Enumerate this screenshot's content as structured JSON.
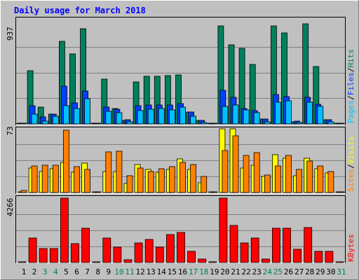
{
  "title": "Daily usage for March 2018",
  "colors": {
    "background": "#c0c0c0",
    "plot_bg": "#c0c0c0",
    "hits": "#00805c",
    "files": "#0040ff",
    "pages": "#00c0ff",
    "visits": "#ffff00",
    "sites": "#ff8000",
    "kbytes": "#ff0000",
    "title": "#0000ff",
    "weekend_label": "#00805c"
  },
  "legend": {
    "top": {
      "pages": "Pages",
      "sep1": "/",
      "files": "Files",
      "sep2": "/",
      "hits": "Hits"
    },
    "mid": {
      "sites": "Sites",
      "sep": "/",
      "visits": "Visits"
    },
    "bottom": {
      "kbytes": "KBytes"
    }
  },
  "chart_data": {
    "type": "bar",
    "title": "Daily usage for March 2018",
    "categories": [
      "1",
      "2",
      "3",
      "4",
      "5",
      "6",
      "7",
      "8",
      "9",
      "10",
      "11",
      "12",
      "13",
      "14",
      "15",
      "16",
      "17",
      "18",
      "19",
      "20",
      "21",
      "22",
      "23",
      "24",
      "25",
      "26",
      "27",
      "28",
      "29",
      "30",
      "31"
    ],
    "weekend_days": [
      "3",
      "4",
      "10",
      "11",
      "17",
      "18",
      "24",
      "25",
      "31"
    ],
    "panels": [
      {
        "id": "top",
        "ymax_label": "937",
        "ylim": [
          0,
          937
        ],
        "series": [
          {
            "name": "Hits",
            "color": "#00805c",
            "values": [
              0,
              485,
              150,
              90,
              755,
              640,
              870,
              0,
              405,
              140,
              30,
              385,
              435,
              435,
              440,
              445,
              110,
              30,
              0,
              890,
              720,
              690,
              540,
              45,
              890,
              830,
              20,
              910,
              520,
              40,
              0
            ]
          },
          {
            "name": "Files",
            "color": "#0040ff",
            "values": [
              0,
              165,
              65,
              90,
              345,
              190,
              300,
              0,
              155,
              135,
              40,
              165,
              170,
              170,
              175,
              185,
              110,
              30,
              0,
              305,
              245,
              140,
              120,
              45,
              265,
              250,
              25,
              245,
              180,
              40,
              0
            ]
          },
          {
            "name": "Pages",
            "color": "#00c0ff",
            "values": [
              0,
              90,
              25,
              70,
              165,
              140,
              230,
              0,
              115,
              100,
              20,
              120,
              135,
              140,
              125,
              155,
              70,
              15,
              0,
              160,
              170,
              125,
              100,
              20,
              200,
              210,
              15,
              195,
              160,
              20,
              0
            ]
          }
        ]
      },
      {
        "id": "mid",
        "ymax_label": "73",
        "ylim": [
          0,
          73
        ],
        "series": [
          {
            "name": "Visits",
            "color": "#ffff00",
            "values": [
              1,
              28,
              24,
              27,
              34,
              23,
              33,
              1,
              24,
              24,
              10,
              32,
              26,
              23,
              26,
              38,
              26,
              11,
              0,
              72,
              72,
              28,
              31,
              18,
              43,
              39,
              19,
              39,
              27,
              22,
              0
            ]
          },
          {
            "name": "Sites",
            "color": "#ff8000",
            "values": [
              2,
              30,
              31,
              31,
              71,
              29,
              26,
              1,
              46,
              47,
              19,
              28,
              24,
              27,
              29,
              34,
              32,
              18,
              0,
              48,
              64,
              42,
              45,
              20,
              30,
              42,
              26,
              36,
              30,
              24,
              0
            ]
          }
        ]
      },
      {
        "id": "bottom",
        "ymax_label": "4266",
        "ylim": [
          0,
          4266
        ],
        "series": [
          {
            "name": "KBytes",
            "color": "#ff0000",
            "values": [
              0,
              1600,
              950,
              950,
              4266,
              1250,
              2250,
              0,
              1600,
              1000,
              180,
              1300,
              1550,
              1000,
              1850,
              2000,
              750,
              240,
              0,
              4266,
              2450,
              1300,
              1600,
              220,
              2250,
              2250,
              900,
              2300,
              740,
              750,
              0
            ]
          }
        ]
      }
    ]
  }
}
